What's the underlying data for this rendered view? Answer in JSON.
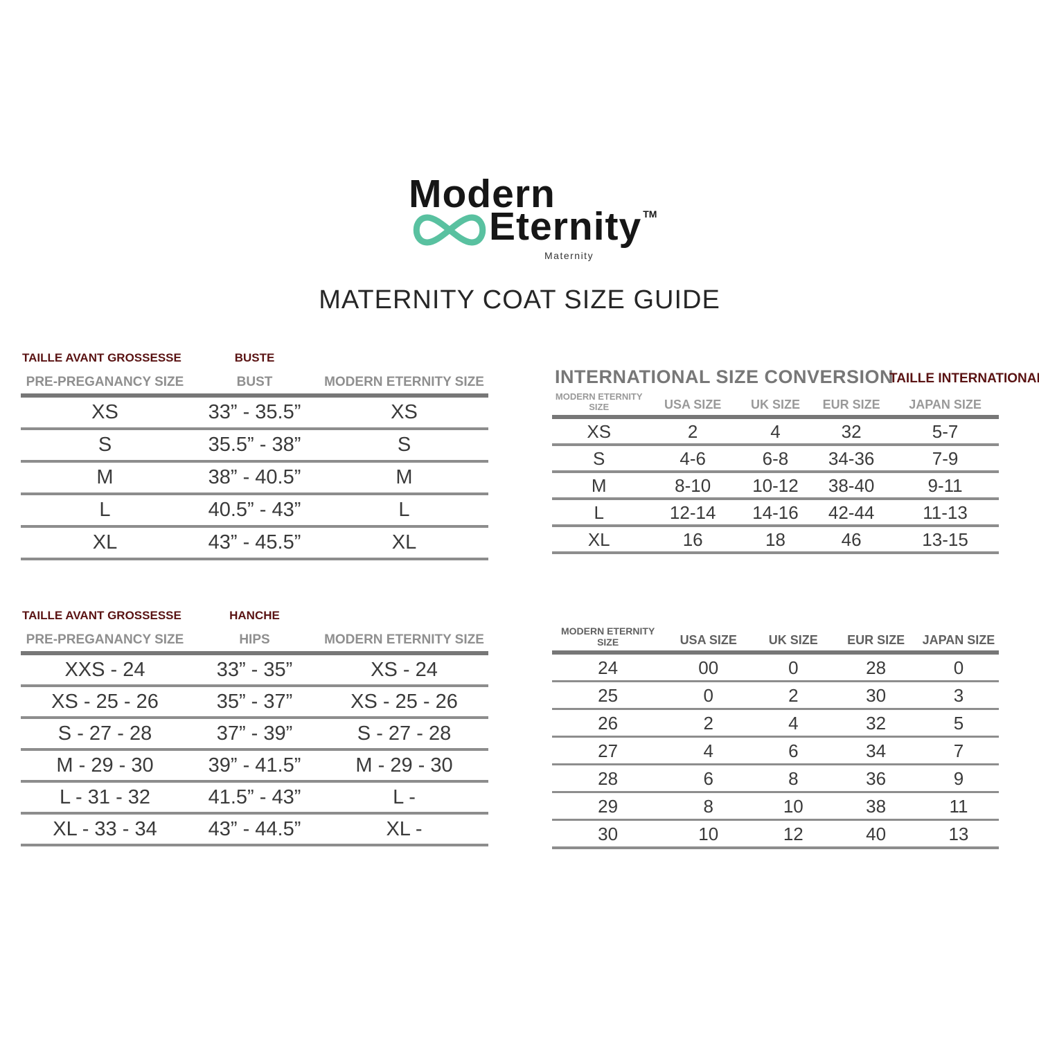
{
  "logo": {
    "brand_line1": "Modern",
    "brand_line2": "Eternity",
    "trademark": "TM",
    "tagline": "Maternity"
  },
  "title": "MATERNITY COAT SIZE GUIDE",
  "bust_table": {
    "label_fr": "TAILLE AVANT GROSSESSE",
    "label_fr_col2": "BUSTE",
    "headers": [
      "PRE-PREGANANCY SIZE",
      "BUST",
      "MODERN ETERNITY SIZE"
    ],
    "rows": [
      [
        "XS",
        "33” - 35.5”",
        "XS"
      ],
      [
        "S",
        "35.5” - 38”",
        "S"
      ],
      [
        "M",
        "38” - 40.5”",
        "M"
      ],
      [
        "L",
        "40.5” - 43”",
        "L"
      ],
      [
        "XL",
        "43” - 45.5”",
        "XL"
      ]
    ]
  },
  "intl_table": {
    "title": "INTERNATIONAL SIZE CONVERSION",
    "label_fr": "TAILLE INTERNATIONALE",
    "headers": [
      "MODERN ETERNITY\nSIZE",
      "USA SIZE",
      "UK SIZE",
      "EUR SIZE",
      "JAPAN SIZE"
    ],
    "rows": [
      [
        "XS",
        "2",
        "4",
        "32",
        "5-7"
      ],
      [
        "S",
        "4-6",
        "6-8",
        "34-36",
        "7-9"
      ],
      [
        "M",
        "8-10",
        "10-12",
        "38-40",
        "9-11"
      ],
      [
        "L",
        "12-14",
        "14-16",
        "42-44",
        "11-13"
      ],
      [
        "XL",
        "16",
        "18",
        "46",
        "13-15"
      ]
    ]
  },
  "hips_table": {
    "label_fr": "TAILLE AVANT GROSSESSE",
    "label_fr_col2": "HANCHE",
    "headers": [
      "PRE-PREGANANCY SIZE",
      "HIPS",
      "MODERN ETERNITY SIZE"
    ],
    "rows": [
      [
        "XXS - 24",
        "33” - 35”",
        "XS - 24"
      ],
      [
        "XS - 25 - 26",
        "35” - 37”",
        "XS - 25 - 26"
      ],
      [
        "S - 27 - 28",
        "37” - 39”",
        "S - 27 - 28"
      ],
      [
        "M - 29 - 30",
        "39” - 41.5”",
        "M - 29 - 30"
      ],
      [
        "L - 31 - 32",
        "41.5” - 43”",
        "L -"
      ],
      [
        "XL - 33 - 34",
        "43” - 44.5”",
        "XL -"
      ]
    ]
  },
  "numeric_table": {
    "headers": [
      "MODERN ETERNITY\nSIZE",
      "USA SIZE",
      "UK SIZE",
      "EUR SIZE",
      "JAPAN SIZE"
    ],
    "rows": [
      [
        "24",
        "00",
        "0",
        "28",
        "0"
      ],
      [
        "25",
        "0",
        "2",
        "30",
        "3"
      ],
      [
        "26",
        "2",
        "4",
        "32",
        "5"
      ],
      [
        "27",
        "4",
        "6",
        "34",
        "7"
      ],
      [
        "28",
        "6",
        "8",
        "36",
        "9"
      ],
      [
        "29",
        "8",
        "10",
        "38",
        "11"
      ],
      [
        "30",
        "10",
        "12",
        "40",
        "13"
      ]
    ]
  },
  "colors": {
    "accent_teal": "#59c1a0",
    "label_red": "#5a1313",
    "header_gray": "#8f8f8f",
    "text_dark": "#3a3a3a",
    "line_gray": "#8d8d8d"
  }
}
